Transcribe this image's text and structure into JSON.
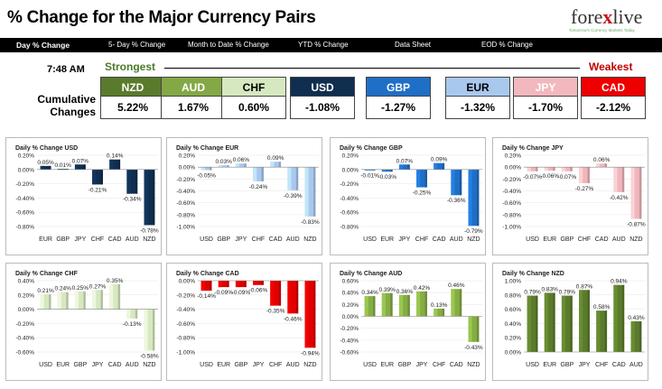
{
  "header": {
    "title": "% Change for the Major Currency Pairs",
    "logo_text_a": "fore",
    "logo_text_x": "x",
    "logo_text_b": "live",
    "logo_tagline": "Tomorrow's Currency Markets Today"
  },
  "tabs": [
    {
      "label": "Day % Change"
    },
    {
      "label": "5- Day % Change"
    },
    {
      "label": "Month to Date % Change"
    },
    {
      "label": "YTD % Change"
    },
    {
      "label": "Data Sheet"
    },
    {
      "label": "EOD % Change"
    }
  ],
  "summary": {
    "time": "7:48 AM",
    "strongest_label": "Strongest",
    "weakest_label": "Weakest",
    "cumulative_label_1": "Cumulative",
    "cumulative_label_2": "Changes",
    "currencies": [
      {
        "name": "NZD",
        "value": "5.22%",
        "bg": "#5b7b2c",
        "fg": "#ffffff"
      },
      {
        "name": "AUD",
        "value": "1.67%",
        "bg": "#83a845",
        "fg": "#ffffff"
      },
      {
        "name": "CHF",
        "value": "0.60%",
        "bg": "#d6e8c0",
        "fg": "#000000"
      },
      {
        "name": "USD",
        "value": "-1.08%",
        "bg": "#0f2e50",
        "fg": "#ffffff"
      },
      {
        "name": "GBP",
        "value": "-1.27%",
        "bg": "#1f6fc6",
        "fg": "#ffffff"
      },
      {
        "name": "EUR",
        "value": "-1.32%",
        "bg": "#a9c8ee",
        "fg": "#000000"
      },
      {
        "name": "JPY",
        "value": "-1.70%",
        "bg": "#f2b8bd",
        "fg": "#ffffff"
      },
      {
        "name": "CAD",
        "value": "-2.12%",
        "bg": "#ee0000",
        "fg": "#ffffff"
      }
    ]
  },
  "colors": {
    "USD": "#0f2e50",
    "EUR": "#a9c8ee",
    "GBP": "#1f6fc6",
    "JPY": "#efb6bb",
    "CHF": "#d6e8c0",
    "CAD": "#e00000",
    "AUD": "#86ad44",
    "NZD": "#5b7b2c"
  },
  "chart_data": [
    {
      "type": "bar",
      "title": "Daily % Change USD",
      "base": "USD",
      "categories": [
        "EUR",
        "GBP",
        "JPY",
        "CHF",
        "CAD",
        "AUD",
        "NZD"
      ],
      "values": [
        0.05,
        0.01,
        0.07,
        -0.21,
        0.14,
        -0.34,
        -0.78
      ],
      "labels": [
        "0.05%",
        "0.01%",
        "0.07%",
        "-0.21%",
        "0.14%",
        "-0.34%",
        "-0.78%"
      ],
      "ylim": [
        -0.8,
        0.2
      ],
      "ticks": [
        "0.20%",
        "0.00%",
        "-0.20%",
        "-0.40%",
        "-0.60%",
        "-0.80%"
      ],
      "tick_values": [
        0.2,
        0,
        -0.2,
        -0.4,
        -0.6,
        -0.8
      ]
    },
    {
      "type": "bar",
      "title": "Daily % Change EUR",
      "base": "EUR",
      "categories": [
        "USD",
        "GBP",
        "JPY",
        "CHF",
        "CAD",
        "AUD",
        "NZD"
      ],
      "values": [
        -0.05,
        0.03,
        0.06,
        -0.24,
        0.09,
        -0.39,
        -0.83
      ],
      "labels": [
        "-0.05%",
        "0.03%",
        "0.06%",
        "-0.24%",
        "0.09%",
        "-0.39%",
        "-0.83%"
      ],
      "ylim": [
        -1.0,
        0.2
      ],
      "ticks": [
        "0.20%",
        "0.00%",
        "-0.20%",
        "-0.40%",
        "-0.60%",
        "-0.80%",
        "-1.00%"
      ],
      "tick_values": [
        0.2,
        0,
        -0.2,
        -0.4,
        -0.6,
        -0.8,
        -1.0
      ]
    },
    {
      "type": "bar",
      "title": "Daily % Change GBP",
      "base": "GBP",
      "categories": [
        "USD",
        "EUR",
        "JPY",
        "CHF",
        "CAD",
        "AUD",
        "NZD"
      ],
      "values": [
        -0.01,
        -0.03,
        0.07,
        -0.25,
        0.09,
        -0.36,
        -0.79
      ],
      "labels": [
        "-0.01%",
        "-0.03%",
        "0.07%",
        "-0.25%",
        "0.09%",
        "-0.36%",
        "-0.79%"
      ],
      "ylim": [
        -0.8,
        0.2
      ],
      "ticks": [
        "0.20%",
        "0.00%",
        "-0.20%",
        "-0.40%",
        "-0.60%",
        "-0.80%"
      ],
      "tick_values": [
        0.2,
        0,
        -0.2,
        -0.4,
        -0.6,
        -0.8
      ]
    },
    {
      "type": "bar",
      "title": "Daily % Change JPY",
      "base": "JPY",
      "categories": [
        "USD",
        "EUR",
        "GBP",
        "CHF",
        "CAD",
        "AUD",
        "NZD"
      ],
      "values": [
        -0.07,
        -0.06,
        -0.07,
        -0.27,
        0.06,
        -0.42,
        -0.87
      ],
      "labels": [
        "-0.07%",
        "-0.06%",
        "-0.07%",
        "-0.27%",
        "0.06%",
        "-0.42%",
        "-0.87%"
      ],
      "ylim": [
        -1.0,
        0.2
      ],
      "ticks": [
        "0.20%",
        "0.00%",
        "-0.20%",
        "-0.40%",
        "-0.60%",
        "-0.80%",
        "-1.00%"
      ],
      "tick_values": [
        0.2,
        0,
        -0.2,
        -0.4,
        -0.6,
        -0.8,
        -1.0
      ]
    },
    {
      "type": "bar",
      "title": "Daily % Change CHF",
      "base": "CHF",
      "categories": [
        "USD",
        "EUR",
        "GBP",
        "JPY",
        "CAD",
        "AUD",
        "NZD"
      ],
      "values": [
        0.21,
        0.24,
        0.25,
        0.27,
        0.35,
        -0.13,
        -0.58
      ],
      "labels": [
        "0.21%",
        "0.24%",
        "0.25%",
        "0.27%",
        "0.35%",
        "-0.13%",
        "-0.58%"
      ],
      "ylim": [
        -0.6,
        0.4
      ],
      "ticks": [
        "0.40%",
        "0.20%",
        "0.00%",
        "-0.20%",
        "-0.40%",
        "-0.60%"
      ],
      "tick_values": [
        0.4,
        0.2,
        0,
        -0.2,
        -0.4,
        -0.6
      ]
    },
    {
      "type": "bar",
      "title": "Daily % Change CAD",
      "base": "CAD",
      "categories": [
        "USD",
        "EUR",
        "GBP",
        "JPY",
        "CHF",
        "AUD",
        "NZD"
      ],
      "values": [
        -0.14,
        -0.09,
        -0.09,
        -0.06,
        -0.35,
        -0.46,
        -0.94
      ],
      "labels": [
        "-0.14%",
        "-0.09%",
        "-0.09%",
        "-0.06%",
        "-0.35%",
        "-0.46%",
        "-0.94%"
      ],
      "ylim": [
        -1.0,
        0.0
      ],
      "ticks": [
        "0.00%",
        "-0.20%",
        "-0.40%",
        "-0.60%",
        "-0.80%",
        "-1.00%"
      ],
      "tick_values": [
        0,
        -0.2,
        -0.4,
        -0.6,
        -0.8,
        -1.0
      ]
    },
    {
      "type": "bar",
      "title": "Daily % Change AUD",
      "base": "AUD",
      "categories": [
        "USD",
        "EUR",
        "GBP",
        "JPY",
        "CHF",
        "CAD",
        "NZD"
      ],
      "values": [
        0.34,
        0.39,
        0.36,
        0.42,
        0.13,
        0.46,
        -0.43
      ],
      "labels": [
        "0.34%",
        "0.39%",
        "0.36%",
        "0.42%",
        "0.13%",
        "0.46%",
        "-0.43%"
      ],
      "ylim": [
        -0.6,
        0.6
      ],
      "ticks": [
        "0.60%",
        "0.40%",
        "0.20%",
        "0.00%",
        "-0.20%",
        "-0.40%",
        "-0.60%"
      ],
      "tick_values": [
        0.6,
        0.4,
        0.2,
        0,
        -0.2,
        -0.4,
        -0.6
      ]
    },
    {
      "type": "bar",
      "title": "Daily % Change NZD",
      "base": "NZD",
      "categories": [
        "USD",
        "EUR",
        "GBP",
        "JPY",
        "CHF",
        "CAD",
        "AUD"
      ],
      "values": [
        0.79,
        0.83,
        0.79,
        0.87,
        0.58,
        0.94,
        0.43
      ],
      "labels": [
        "0.79%",
        "0.83%",
        "0.79%",
        "0.87%",
        "0.58%",
        "0.94%",
        "0.43%"
      ],
      "ylim": [
        0.0,
        1.0
      ],
      "ticks": [
        "1.00%",
        "0.80%",
        "0.60%",
        "0.40%",
        "0.20%",
        "0.00%"
      ],
      "tick_values": [
        1.0,
        0.8,
        0.6,
        0.4,
        0.2,
        0
      ]
    }
  ]
}
